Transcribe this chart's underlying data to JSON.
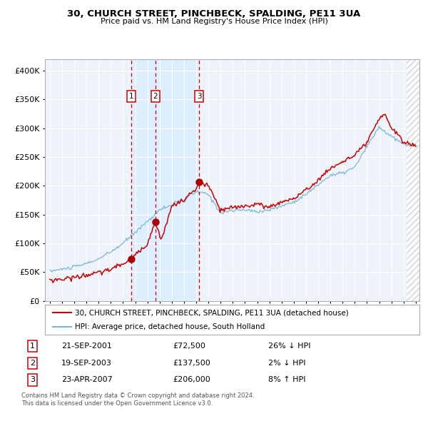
{
  "title": "30, CHURCH STREET, PINCHBECK, SPALDING, PE11 3UA",
  "subtitle": "Price paid vs. HM Land Registry's House Price Index (HPI)",
  "legend_line1": "30, CHURCH STREET, PINCHBECK, SPALDING, PE11 3UA (detached house)",
  "legend_line2": "HPI: Average price, detached house, South Holland",
  "sale1_date": "21-SEP-2001",
  "sale1_price": 72500,
  "sale1_hpi": "26% ↓ HPI",
  "sale2_date": "19-SEP-2003",
  "sale2_price": 137500,
  "sale2_hpi": "2% ↓ HPI",
  "sale3_date": "23-APR-2007",
  "sale3_price": 206000,
  "sale3_hpi": "8% ↑ HPI",
  "footer1": "Contains HM Land Registry data © Crown copyright and database right 2024.",
  "footer2": "This data is licensed under the Open Government Licence v3.0.",
  "hpi_color": "#7ab8d9",
  "price_color": "#cc0000",
  "sale_marker_color": "#aa0000",
  "vline_color": "#cc0000",
  "span_color": "#ddeeff",
  "plot_bg": "#eef3fa",
  "ylim": [
    0,
    420000
  ],
  "yticks": [
    0,
    50000,
    100000,
    150000,
    200000,
    250000,
    300000,
    350000,
    400000
  ],
  "xlim_left": 1994.6,
  "xlim_right": 2025.3,
  "sale1_year": 2001.667,
  "sale2_year": 2003.667,
  "sale3_year": 2007.25
}
